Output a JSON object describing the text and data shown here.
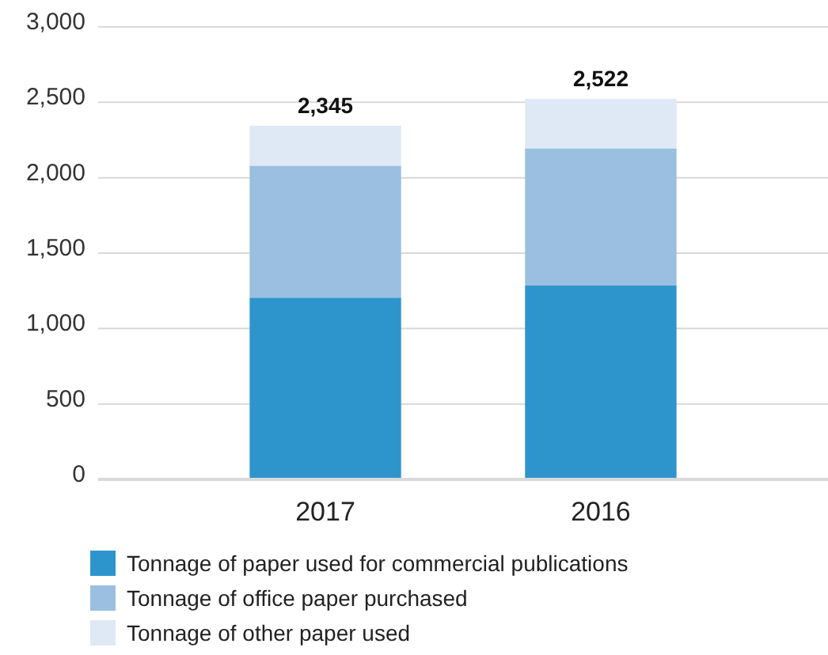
{
  "chart_data": {
    "type": "bar",
    "stacked": true,
    "categories": [
      "2017",
      "2016"
    ],
    "series": [
      {
        "name": "Tonnage of paper used for commercial publications",
        "color": "#2e95cc",
        "values": [
          1205,
          1285
        ]
      },
      {
        "name": "Tonnage of office paper purchased",
        "color": "#9abfe0",
        "values": [
          875,
          910
        ]
      },
      {
        "name": "Tonnage of other paper used",
        "color": "#dfe8f5",
        "values": [
          265,
          327
        ]
      }
    ],
    "totals": [
      "2,345",
      "2,522"
    ],
    "ylim": [
      0,
      3000
    ],
    "yticks": [
      {
        "value": 0,
        "label": "0"
      },
      {
        "value": 500,
        "label": "500"
      },
      {
        "value": 1000,
        "label": "1,000"
      },
      {
        "value": 1500,
        "label": "1,500"
      },
      {
        "value": 2000,
        "label": "2,000"
      },
      {
        "value": 2500,
        "label": "2,500"
      },
      {
        "value": 3000,
        "label": "3,000"
      }
    ],
    "grid": "y",
    "legend": "bottom"
  }
}
